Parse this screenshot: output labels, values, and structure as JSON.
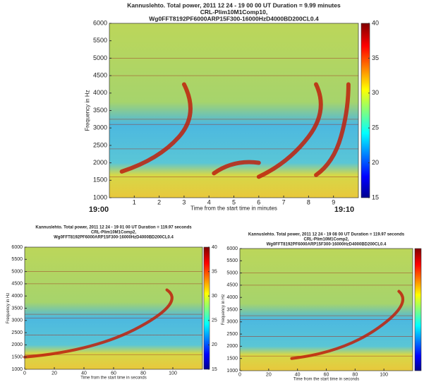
{
  "chart_data": [
    {
      "type": "spectrogram",
      "title": [
        "Kannuslehto. Total power, 2011 12 24 - 19 00 00 UT  Duration = 9.99 minutes",
        "CRL-Plim10M1Comp10,",
        "Wg0FFT8192PF6000ARP15F300-16000HzD4000BD200CL0.4"
      ],
      "xlabel": "Time from the start time in minutes",
      "ylabel": "Frequency in Hz",
      "xlim": [
        0,
        10
      ],
      "xticks": [
        1,
        2,
        3,
        4,
        5,
        6,
        7,
        8,
        9
      ],
      "ylim": [
        1000,
        6000
      ],
      "yticks": [
        1000,
        1500,
        2000,
        2500,
        3000,
        3500,
        4000,
        4500,
        5000,
        5500,
        6000
      ],
      "clim": [
        15,
        40
      ],
      "cticks": [
        15,
        20,
        25,
        30,
        35,
        40
      ],
      "annotations": [
        "19:00",
        "19:10"
      ]
    },
    {
      "type": "spectrogram",
      "title": [
        "Kannuslehto. Total power, 2011 12 24 - 19 01 00 UT  Duration = 119.97 seconds",
        "CRL-Plim10M1Comp2,",
        "Wg0FFT8192PF6000ARP15F300-16000HzD4000BD200CL0.4"
      ],
      "xlabel": "Time from the start time in seconds",
      "ylabel": "Frequency in Hz",
      "xlim": [
        0,
        120
      ],
      "xticks": [
        0,
        20,
        40,
        60,
        80,
        100
      ],
      "ylim": [
        1000,
        6000
      ],
      "yticks": [
        1000,
        1500,
        2000,
        2500,
        3000,
        3500,
        4000,
        4500,
        5000,
        5500,
        6000
      ],
      "clim": [
        15,
        40
      ],
      "cticks": [
        15,
        20,
        25,
        30,
        35,
        40
      ]
    },
    {
      "type": "spectrogram",
      "title": [
        "Kannuslehto. Total power, 2011 12 24 - 19 08 00 UT  Duration = 119.97 seconds",
        "CRL-Plim10M1Comp2,",
        "Wg0FFT8192PF6000ARP15F300-16000HzD4000BD200CL0.4"
      ],
      "xlabel": "Time from the start time in seconds",
      "ylabel": "Frequency in Hz",
      "xlim": [
        0,
        120
      ],
      "xticks": [
        0,
        20,
        40,
        60,
        80,
        100
      ],
      "ylim": [
        1000,
        6000
      ],
      "yticks": [
        1000,
        1500,
        2000,
        2500,
        3000,
        3500,
        4000,
        4500,
        5000,
        5500,
        6000
      ],
      "clim": [
        15,
        40
      ]
    }
  ]
}
